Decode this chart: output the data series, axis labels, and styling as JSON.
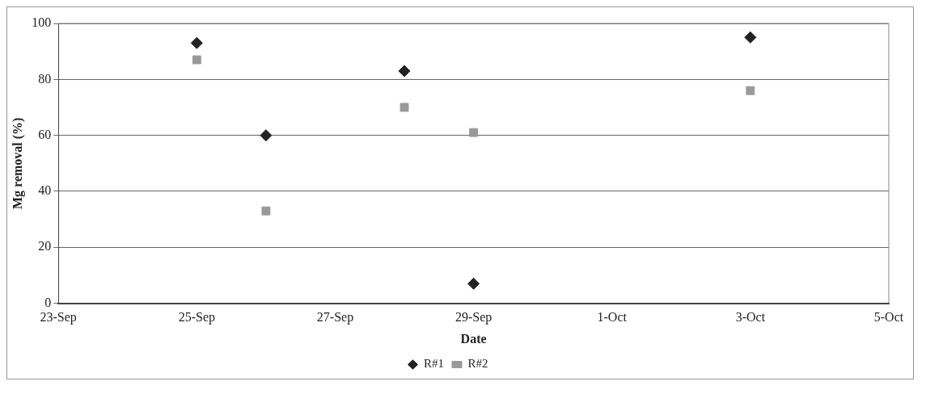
{
  "chart_data": {
    "type": "scatter",
    "xlabel": "Date",
    "ylabel": "Mg removal (%)",
    "x": [
      "--09-25",
      "--09-26",
      "--09-28",
      "--09-29",
      "--10-03"
    ],
    "series": [
      {
        "name": "R#1",
        "color": "#222222",
        "marker": "diamond",
        "values": [
          93,
          60,
          83,
          7,
          95
        ]
      },
      {
        "name": "R#2",
        "color": "#999999",
        "marker": "square",
        "values": [
          87,
          33,
          70,
          61,
          76
        ]
      }
    ],
    "xlim": [
      "--09-23",
      "--10-05"
    ],
    "xticks": [
      {
        "value": "--09-23",
        "label": "23-Sep"
      },
      {
        "value": "--09-25",
        "label": "25-Sep"
      },
      {
        "value": "--09-27",
        "label": "27-Sep"
      },
      {
        "value": "--09-29",
        "label": "29-Sep"
      },
      {
        "value": "--10-01",
        "label": "1-Oct"
      },
      {
        "value": "--10-03",
        "label": "3-Oct"
      },
      {
        "value": "--10-05",
        "label": "5-Oct"
      }
    ],
    "ylim": [
      0,
      100
    ],
    "yticks": [
      0,
      20,
      40,
      60,
      80,
      100
    ],
    "grid": "y",
    "legend": "bottom"
  }
}
